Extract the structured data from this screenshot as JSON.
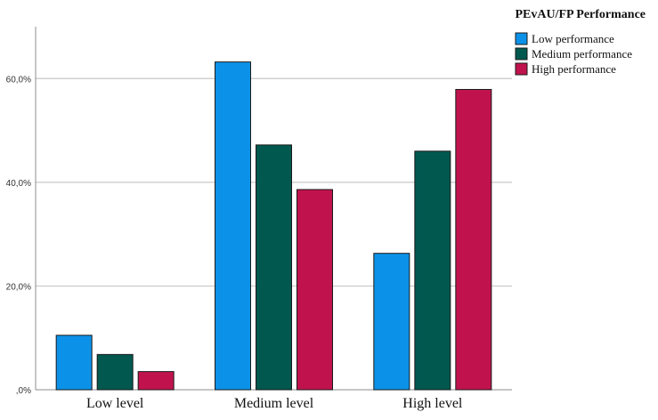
{
  "chart_data": {
    "type": "bar",
    "title": "",
    "xlabel": "",
    "ylabel": "",
    "categories": [
      "Low level",
      "Medium level",
      "High level"
    ],
    "series": [
      {
        "name": "Low performance",
        "values": [
          10.5,
          63.2,
          26.3
        ],
        "color": "#0b92e8"
      },
      {
        "name": "Medium performance",
        "values": [
          6.8,
          47.2,
          46.0
        ],
        "color": "#00584f"
      },
      {
        "name": "High performance",
        "values": [
          3.5,
          38.6,
          57.9
        ],
        "color": "#c0134e"
      }
    ],
    "ylim": [
      0,
      70
    ],
    "yticks": [
      0,
      20,
      40,
      60
    ],
    "ytick_labels": [
      ",0%",
      "20,0%",
      "40,0%",
      "60,0%"
    ],
    "grid": true,
    "legend": {
      "title": "PEvAU/FP Performance",
      "position": "top-right"
    }
  }
}
